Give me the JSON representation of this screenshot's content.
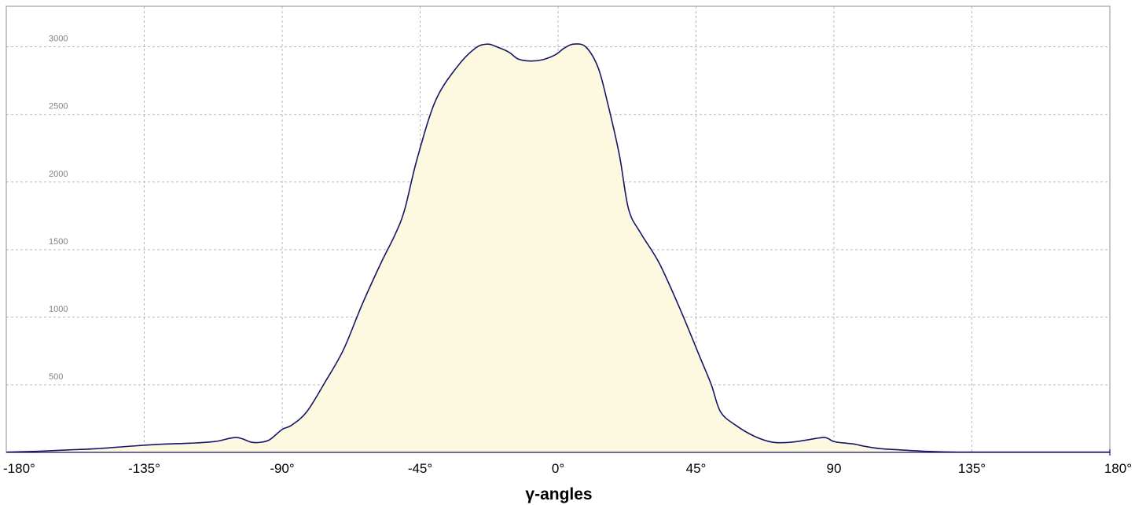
{
  "chart_data": {
    "type": "area",
    "title": "",
    "xlabel": "γ-angles",
    "ylabel": "",
    "xlim": [
      -180,
      180
    ],
    "ylim": [
      0,
      3300
    ],
    "grid": true,
    "legend": "none",
    "colors": {
      "line": "#1a1466",
      "fill": "#fcf9e0",
      "grid": "#b8b8b8",
      "frame": "#8c8c8c"
    },
    "x_ticks": [
      {
        "value": -180,
        "label": "-180°"
      },
      {
        "value": -135,
        "label": "-135°"
      },
      {
        "value": -90,
        "label": "-90°"
      },
      {
        "value": -45,
        "label": "-45°"
      },
      {
        "value": 0,
        "label": "0°"
      },
      {
        "value": 45,
        "label": "45°"
      },
      {
        "value": 90,
        "label": "90"
      },
      {
        "value": 135,
        "label": "135°"
      },
      {
        "value": 180,
        "label": "180°"
      }
    ],
    "y_ticks": [
      {
        "value": 500,
        "label": "500"
      },
      {
        "value": 1000,
        "label": "1000"
      },
      {
        "value": 1500,
        "label": "1500"
      },
      {
        "value": 2000,
        "label": "2000"
      },
      {
        "value": 2500,
        "label": "2500"
      },
      {
        "value": 3000,
        "label": "3000"
      }
    ],
    "series": [
      {
        "x": [
          -180,
          -170,
          -160,
          -150,
          -140,
          -130,
          -120,
          -112,
          -105,
          -100,
          -97,
          -94,
          -90,
          -87,
          -82,
          -76,
          -70,
          -64,
          -58,
          -53,
          -50,
          -46,
          -40,
          -33,
          -27,
          -23,
          -20,
          -16,
          -13,
          -9,
          -5,
          -1,
          2,
          5,
          9,
          13,
          16,
          20,
          23,
          27,
          33,
          40,
          46,
          50,
          53,
          58,
          64,
          70,
          76,
          82,
          87,
          90,
          94,
          97,
          100,
          105,
          112,
          120,
          130,
          140,
          150,
          160,
          170,
          180
        ],
        "y": [
          2,
          8,
          18,
          28,
          45,
          60,
          68,
          80,
          110,
          75,
          75,
          95,
          170,
          200,
          300,
          520,
          760,
          1090,
          1390,
          1620,
          1800,
          2170,
          2600,
          2850,
          2990,
          3020,
          3000,
          2960,
          2910,
          2895,
          2905,
          2940,
          2990,
          3020,
          3000,
          2850,
          2600,
          2200,
          1800,
          1620,
          1400,
          1050,
          720,
          500,
          300,
          200,
          120,
          75,
          75,
          95,
          110,
          80,
          68,
          60,
          45,
          28,
          18,
          8,
          2,
          2,
          2,
          2,
          2,
          2
        ]
      }
    ]
  }
}
